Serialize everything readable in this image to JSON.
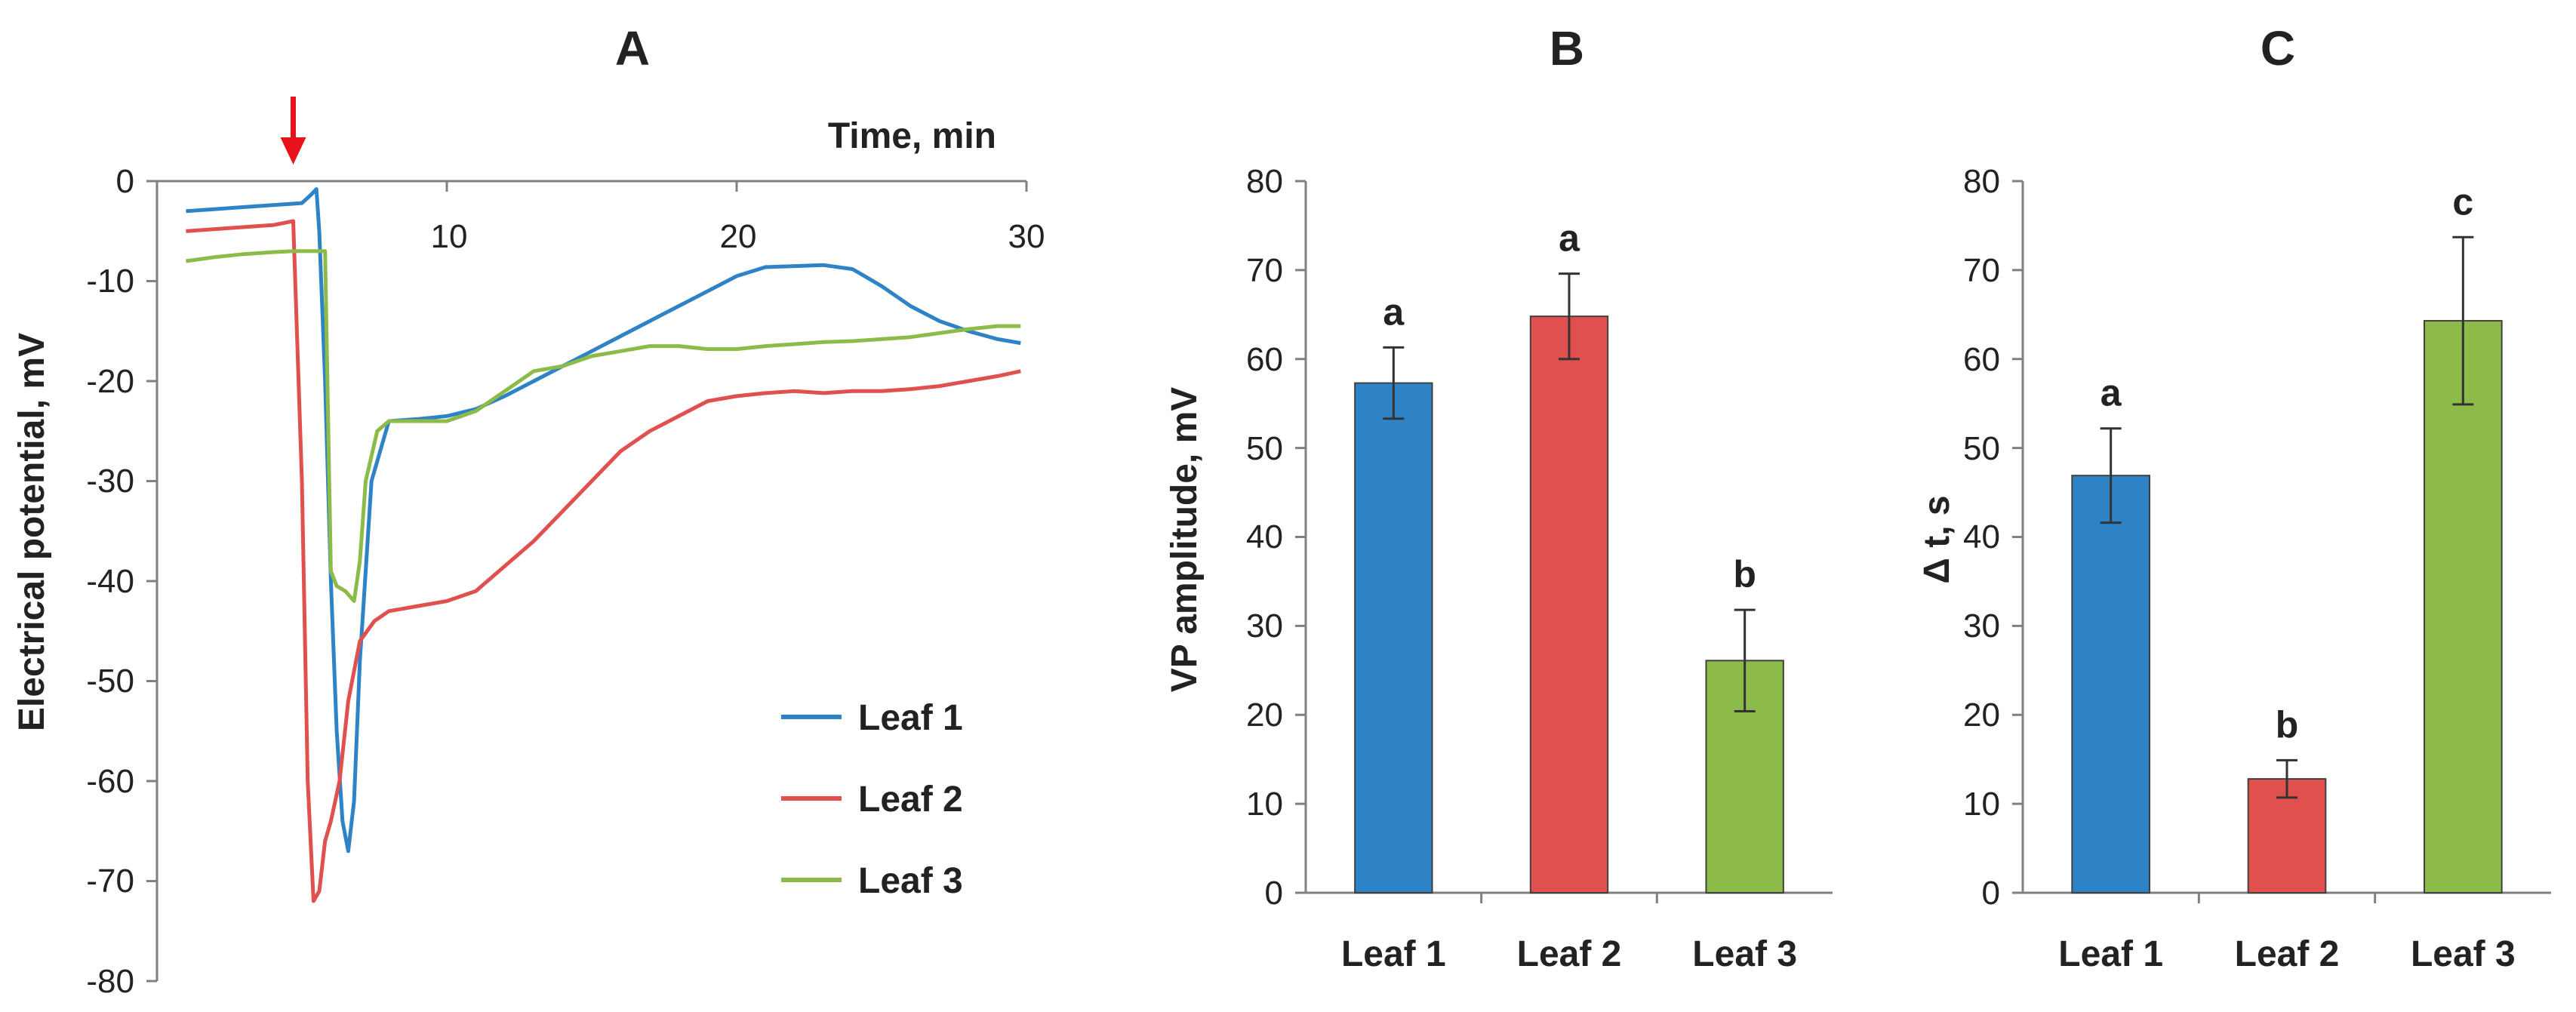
{
  "chart_data": [
    {
      "panel": "A",
      "type": "line",
      "title": "A",
      "xlabel": "Time, min",
      "ylabel": "Electrical potential, mV",
      "xlim": [
        0,
        30
      ],
      "ylim": [
        -80,
        0
      ],
      "xticks": [
        "10",
        "20",
        "30"
      ],
      "yticks": [
        "0",
        "-10",
        "-20",
        "-30",
        "-40",
        "-50",
        "-60",
        "-70",
        "-80"
      ],
      "stimulus_time": 4.7,
      "arrow_color": "#e8131a",
      "legend_position": "bottom-right",
      "series": [
        {
          "name": "Leaf 1",
          "color": "#2e83c7",
          "x": [
            1,
            2,
            3,
            4,
            5,
            5.3,
            5.5,
            5.6,
            5.8,
            6.0,
            6.2,
            6.4,
            6.6,
            6.8,
            7.0,
            7.4,
            8,
            9,
            10,
            11,
            12,
            13,
            14,
            15,
            16,
            17,
            18,
            19,
            20,
            21,
            22,
            23,
            24,
            25,
            26,
            27,
            28,
            29,
            29.8
          ],
          "y": [
            -3,
            -2.8,
            -2.6,
            -2.4,
            -2.2,
            -1.4,
            -0.8,
            -5,
            -20,
            -40,
            -55,
            -64,
            -67,
            -62,
            -48,
            -30,
            -24,
            -23.8,
            -23.5,
            -22.8,
            -21.5,
            -20,
            -18.5,
            -17,
            -15.5,
            -14,
            -12.5,
            -11,
            -9.5,
            -8.6,
            -8.5,
            -8.4,
            -8.8,
            -10.5,
            -12.5,
            -14,
            -15,
            -15.8,
            -16.2
          ]
        },
        {
          "name": "Leaf 2",
          "color": "#e0504e",
          "x": [
            1,
            2,
            3,
            4,
            4.7,
            5.0,
            5.2,
            5.4,
            5.6,
            5.8,
            6.0,
            6.3,
            6.6,
            7.0,
            7.5,
            8,
            9,
            10,
            11,
            12,
            13,
            14,
            15,
            16,
            17,
            18,
            19,
            20,
            21,
            22,
            23,
            24,
            25,
            26,
            27,
            28,
            29,
            29.8
          ],
          "y": [
            -5,
            -4.8,
            -4.6,
            -4.4,
            -4,
            -30,
            -60,
            -72,
            -71,
            -66,
            -64,
            -60,
            -52,
            -46,
            -44,
            -43,
            -42.5,
            -42,
            -41,
            -38.5,
            -36,
            -33,
            -30,
            -27,
            -25,
            -23.5,
            -22,
            -21.5,
            -21.2,
            -21,
            -21.2,
            -21,
            -21,
            -20.8,
            -20.5,
            -20,
            -19.5,
            -19
          ]
        },
        {
          "name": "Leaf 3",
          "color": "#8dbb49",
          "x": [
            1,
            2,
            3,
            4,
            4.7,
            5.2,
            5.8,
            6.0,
            6.2,
            6.5,
            6.8,
            7.0,
            7.2,
            7.6,
            8,
            9,
            10,
            11,
            12,
            12.5,
            13,
            14,
            15,
            16,
            17,
            18,
            19,
            20,
            21,
            22,
            23,
            24,
            25,
            26,
            27,
            28,
            29,
            29.8
          ],
          "y": [
            -8,
            -7.6,
            -7.3,
            -7.1,
            -7,
            -7,
            -7,
            -39,
            -40.5,
            -41,
            -42,
            -38,
            -30,
            -25,
            -24,
            -24,
            -24,
            -23,
            -21,
            -20,
            -19,
            -18.5,
            -17.5,
            -17,
            -16.5,
            -16.5,
            -16.8,
            -16.8,
            -16.5,
            -16.3,
            -16.1,
            -16,
            -15.8,
            -15.6,
            -15.2,
            -14.8,
            -14.5,
            -14.5
          ]
        }
      ]
    },
    {
      "panel": "B",
      "type": "bar",
      "title": "B",
      "xlabel": "",
      "ylabel": "VP amplitude, mV",
      "ylim": [
        0,
        80
      ],
      "yticks": [
        "0",
        "10",
        "20",
        "30",
        "40",
        "50",
        "60",
        "70",
        "80"
      ],
      "categories": [
        "Leaf 1",
        "Leaf 2",
        "Leaf 3"
      ],
      "values": [
        57.3,
        64.8,
        26.1
      ],
      "errors": [
        4,
        4.8,
        5.7
      ],
      "significance": [
        "a",
        "a",
        "b"
      ],
      "colors": [
        "#2e83c7",
        "#e0504e",
        "#8dbb49"
      ]
    },
    {
      "panel": "C",
      "type": "bar",
      "title": "C",
      "xlabel": "",
      "ylabel": "Δ t, s",
      "ylim": [
        0,
        80
      ],
      "yticks": [
        "0",
        "10",
        "20",
        "30",
        "40",
        "50",
        "60",
        "70",
        "80"
      ],
      "categories": [
        "Leaf 1",
        "Leaf 2",
        "Leaf 3"
      ],
      "values": [
        46.9,
        12.8,
        64.3
      ],
      "errors": [
        5.3,
        2.1,
        9.4
      ],
      "significance": [
        "a",
        "b",
        "c"
      ],
      "colors": [
        "#2e83c7",
        "#e0504e",
        "#8dbb49"
      ]
    }
  ]
}
